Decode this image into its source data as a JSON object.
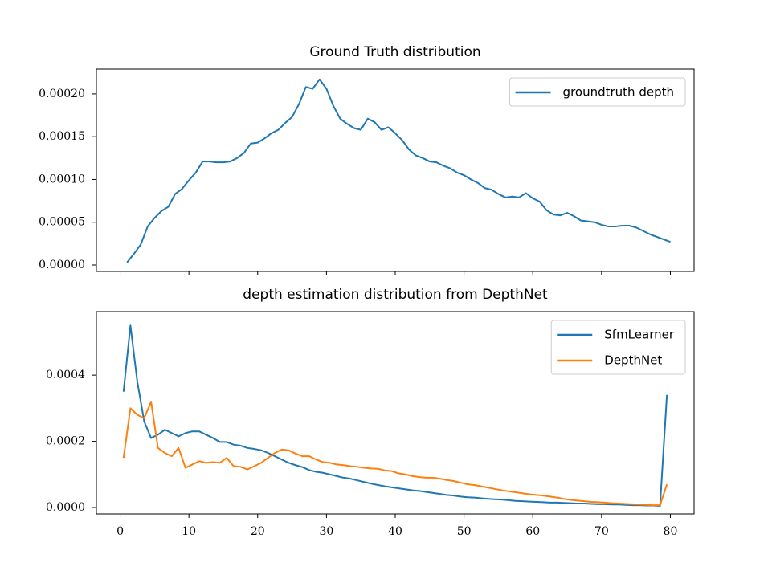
{
  "chart_data": [
    {
      "type": "line",
      "title": "Ground Truth distribution",
      "x": [
        1,
        2,
        3,
        4,
        5,
        6,
        7,
        8,
        9,
        10,
        11,
        12,
        13,
        14,
        15,
        16,
        17,
        18,
        19,
        20,
        21,
        22,
        23,
        24,
        25,
        26,
        27,
        28,
        29,
        30,
        31,
        32,
        33,
        34,
        35,
        36,
        37,
        38,
        39,
        40,
        41,
        42,
        43,
        44,
        45,
        46,
        47,
        48,
        49,
        50,
        51,
        52,
        53,
        54,
        55,
        56,
        57,
        58,
        59,
        60,
        61,
        62,
        63,
        64,
        65,
        66,
        67,
        68,
        69,
        70,
        71,
        72,
        73,
        74,
        75,
        76,
        77,
        78,
        79,
        80
      ],
      "series": [
        {
          "name": "groundtruth depth",
          "color": "#1f77b4",
          "values": [
            3e-06,
            1.3e-05,
            2.4e-05,
            4.5e-05,
            5.5e-05,
            6.3e-05,
            6.8e-05,
            8.3e-05,
            8.9e-05,
            9.9e-05,
            0.000108,
            0.000121,
            0.000121,
            0.00012,
            0.00012,
            0.000121,
            0.000125,
            0.000131,
            0.000142,
            0.000143,
            0.000148,
            0.000154,
            0.000158,
            0.000166,
            0.000173,
            0.000188,
            0.000208,
            0.000206,
            0.000217,
            0.000206,
            0.000186,
            0.000171,
            0.000165,
            0.00016,
            0.000158,
            0.000171,
            0.000167,
            0.000158,
            0.000161,
            0.000154,
            0.000146,
            0.000135,
            0.000128,
            0.000125,
            0.000121,
            0.00012,
            0.000116,
            0.000113,
            0.000108,
            0.000105,
            0.0001,
            9.6e-05,
            9e-05,
            8.8e-05,
            8.3e-05,
            7.9e-05,
            8e-05,
            7.9e-05,
            8.4e-05,
            7.8e-05,
            7.4e-05,
            6.4e-05,
            5.9e-05,
            5.8e-05,
            6.1e-05,
            5.7e-05,
            5.2e-05,
            5.1e-05,
            5e-05,
            4.7e-05,
            4.5e-05,
            4.5e-05,
            4.6e-05,
            4.6e-05,
            4.4e-05,
            4e-05,
            3.6e-05,
            3.3e-05,
            3e-05,
            2.7e-05
          ]
        }
      ],
      "xlim": [
        -3.45,
        83.45
      ],
      "xticks": [
        0,
        10,
        20,
        30,
        40,
        50,
        60,
        70,
        80
      ],
      "show_xtick_labels": false,
      "ylim": [
        -7.5e-06,
        0.000229
      ],
      "yticks": [
        {
          "value": 0,
          "label": "0.00000"
        },
        {
          "value": 5e-05,
          "label": "0.00005"
        },
        {
          "value": 0.0001,
          "label": "0.00010"
        },
        {
          "value": 0.00015,
          "label": "0.00015"
        },
        {
          "value": 0.0002,
          "label": "0.00020"
        }
      ],
      "legend": "upper right",
      "grid": false
    },
    {
      "type": "line",
      "title": "depth estimation distribution from DepthNet",
      "x": [
        0.5,
        1.5,
        2.5,
        3.5,
        4.5,
        5.5,
        6.5,
        7.5,
        8.5,
        9.5,
        10.5,
        11.5,
        12.5,
        13.5,
        14.5,
        15.5,
        16.5,
        17.5,
        18.5,
        19.5,
        20.5,
        21.5,
        22.5,
        23.5,
        24.5,
        25.5,
        26.5,
        27.5,
        28.5,
        29.5,
        30.5,
        31.5,
        32.5,
        33.5,
        34.5,
        35.5,
        36.5,
        37.5,
        38.5,
        39.5,
        40.5,
        41.5,
        42.5,
        43.5,
        44.5,
        45.5,
        46.5,
        47.5,
        48.5,
        49.5,
        50.5,
        51.5,
        52.5,
        53.5,
        54.5,
        55.5,
        56.5,
        57.5,
        58.5,
        59.5,
        60.5,
        61.5,
        62.5,
        63.5,
        64.5,
        65.5,
        66.5,
        67.5,
        68.5,
        69.5,
        70.5,
        71.5,
        72.5,
        73.5,
        74.5,
        75.5,
        76.5,
        77.5,
        78.5,
        79.5
      ],
      "series": [
        {
          "name": "SfmLearner",
          "color": "#1f77b4",
          "values": [
            0.00035,
            0.00055,
            0.00038,
            0.00026,
            0.00021,
            0.00022,
            0.000235,
            0.000225,
            0.000215,
            0.000225,
            0.00023,
            0.00023,
            0.00022,
            0.00021,
            0.000198,
            0.000198,
            0.00019,
            0.000187,
            0.00018,
            0.000177,
            0.000173,
            0.000165,
            0.000155,
            0.000145,
            0.000135,
            0.000128,
            0.000122,
            0.000113,
            0.000108,
            0.000105,
            0.0001,
            9.5e-05,
            9e-05,
            8.7e-05,
            8.2e-05,
            7.7e-05,
            7.2e-05,
            6.8e-05,
            6.4e-05,
            6.1e-05,
            5.8e-05,
            5.5e-05,
            5.2e-05,
            5e-05,
            4.7e-05,
            4.4e-05,
            4.1e-05,
            3.8e-05,
            3.6e-05,
            3.3e-05,
            3.1e-05,
            3e-05,
            2.8e-05,
            2.6e-05,
            2.5e-05,
            2.4e-05,
            2.2e-05,
            2e-05,
            1.9e-05,
            1.8e-05,
            1.7e-05,
            1.6e-05,
            1.5e-05,
            1.5e-05,
            1.4e-05,
            1.3e-05,
            1.2e-05,
            1.2e-05,
            1.1e-05,
            1e-05,
            1e-05,
            9e-06,
            9e-06,
            8e-06,
            7e-06,
            7e-06,
            6e-06,
            6e-06,
            5e-06,
            0.00034
          ]
        },
        {
          "name": "DepthNet",
          "color": "#ff7f0e",
          "values": [
            0.00015,
            0.0003,
            0.00028,
            0.00027,
            0.00032,
            0.00018,
            0.000165,
            0.000155,
            0.00018,
            0.00012,
            0.00013,
            0.00014,
            0.000135,
            0.000137,
            0.000135,
            0.00015,
            0.000125,
            0.000123,
            0.000115,
            0.000125,
            0.000135,
            0.00015,
            0.000165,
            0.000175,
            0.000173,
            0.000163,
            0.000155,
            0.000155,
            0.000145,
            0.000137,
            0.000135,
            0.00013,
            0.000128,
            0.000125,
            0.000123,
            0.00012,
            0.000118,
            0.000117,
            0.000112,
            0.00011,
            0.000103,
            0.0001,
            9.5e-05,
            9.2e-05,
            9e-05,
            9e-05,
            8.7e-05,
            8.3e-05,
            8e-05,
            7.5e-05,
            7e-05,
            6.8e-05,
            6.4e-05,
            6e-05,
            5.6e-05,
            5.2e-05,
            4.9e-05,
            4.6e-05,
            4.3e-05,
            4e-05,
            3.8e-05,
            3.6e-05,
            3.3e-05,
            3e-05,
            2.6e-05,
            2.3e-05,
            2.1e-05,
            1.9e-05,
            1.7e-05,
            1.6e-05,
            1.5e-05,
            1.3e-05,
            1.2e-05,
            1.1e-05,
            1e-05,
            9e-06,
            8e-06,
            7e-06,
            7e-06,
            7e-05
          ]
        }
      ],
      "xlim": [
        -3.45,
        83.45
      ],
      "xticks": [
        0,
        10,
        20,
        30,
        40,
        50,
        60,
        70,
        80
      ],
      "show_xtick_labels": true,
      "ylim": [
        -1.94e-05,
        0.000592
      ],
      "yticks": [
        {
          "value": 0,
          "label": "0.0000"
        },
        {
          "value": 0.0002,
          "label": "0.0002"
        },
        {
          "value": 0.0004,
          "label": "0.0004"
        }
      ],
      "legend": "upper right",
      "grid": false
    }
  ]
}
